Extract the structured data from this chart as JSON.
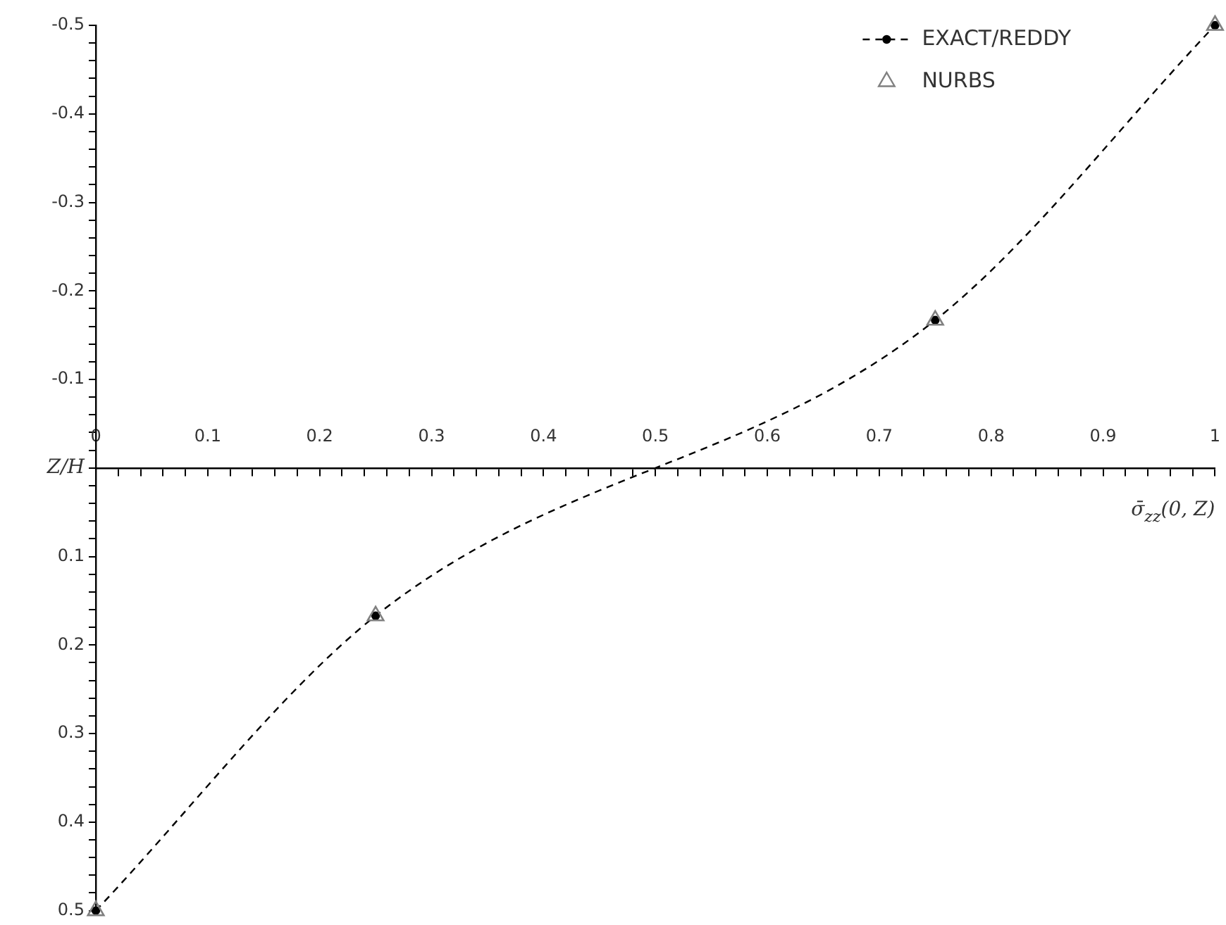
{
  "chart_data": {
    "type": "line",
    "xlabel": "σ̄$_{zz}$(0, Z)",
    "ylabel": "Z/H",
    "xlim": [
      0,
      1
    ],
    "ylim": [
      0.5,
      -0.5
    ],
    "xticks": [
      0,
      {
        "value": 0.02,
        "label": null
      },
      {
        "value": 0.04,
        "label": null
      },
      {
        "value": 0.06,
        "label": null
      },
      {
        "value": 0.08,
        "label": null
      },
      0.1,
      {
        "value": 0.12,
        "label": null
      },
      {
        "value": 0.14,
        "label": null
      },
      {
        "value": 0.16,
        "label": null
      },
      {
        "value": 0.18,
        "label": null
      },
      0.2,
      {
        "value": 0.22,
        "label": null
      },
      {
        "value": 0.24,
        "label": null
      },
      {
        "value": 0.26,
        "label": null
      },
      {
        "value": 0.28,
        "label": null
      },
      0.3,
      {
        "value": 0.32,
        "label": null
      },
      {
        "value": 0.34,
        "label": null
      },
      {
        "value": 0.36,
        "label": null
      },
      {
        "value": 0.38,
        "label": null
      },
      0.4,
      {
        "value": 0.42,
        "label": null
      },
      {
        "value": 0.44,
        "label": null
      },
      {
        "value": 0.46,
        "label": null
      },
      {
        "value": 0.48,
        "label": null
      },
      0.5,
      {
        "value": 0.52,
        "label": null
      },
      {
        "value": 0.54,
        "label": null
      },
      {
        "value": 0.56,
        "label": null
      },
      {
        "value": 0.58,
        "label": null
      },
      0.6,
      {
        "value": 0.62,
        "label": null
      },
      {
        "value": 0.64,
        "label": null
      },
      {
        "value": 0.66,
        "label": null
      },
      {
        "value": 0.68,
        "label": null
      },
      0.7,
      {
        "value": 0.72,
        "label": null
      },
      {
        "value": 0.74,
        "label": null
      },
      {
        "value": 0.76,
        "label": null
      },
      {
        "value": 0.78,
        "label": null
      },
      0.8,
      {
        "value": 0.82,
        "label": null
      },
      {
        "value": 0.84,
        "label": null
      },
      {
        "value": 0.86,
        "label": null
      },
      {
        "value": 0.88,
        "label": null
      },
      0.9,
      {
        "value": 0.92,
        "label": null
      },
      {
        "value": 0.94,
        "label": null
      },
      {
        "value": 0.96,
        "label": null
      },
      {
        "value": 0.98,
        "label": null
      },
      1
    ],
    "yticks": [
      -0.5,
      {
        "value": -0.48,
        "label": null
      },
      {
        "value": -0.46,
        "label": null
      },
      {
        "value": -0.44,
        "label": null
      },
      {
        "value": -0.42,
        "label": null
      },
      -0.4,
      {
        "value": -0.38,
        "label": null
      },
      {
        "value": -0.36,
        "label": null
      },
      {
        "value": -0.34,
        "label": null
      },
      {
        "value": -0.32,
        "label": null
      },
      -0.3,
      {
        "value": -0.28,
        "label": null
      },
      {
        "value": -0.26,
        "label": null
      },
      {
        "value": -0.24,
        "label": null
      },
      {
        "value": -0.22,
        "label": null
      },
      -0.2,
      {
        "value": -0.18,
        "label": null
      },
      {
        "value": -0.16,
        "label": null
      },
      {
        "value": -0.14,
        "label": null
      },
      {
        "value": -0.12,
        "label": null
      },
      -0.1,
      {
        "value": -0.08,
        "label": null
      },
      {
        "value": -0.06,
        "label": null
      },
      {
        "value": -0.04,
        "label": null
      },
      {
        "value": -0.02,
        "label": null
      },
      {
        "value": 0,
        "label": null
      },
      {
        "value": 0.02,
        "label": null
      },
      {
        "value": 0.04,
        "label": null
      },
      {
        "value": 0.06,
        "label": null
      },
      {
        "value": 0.08,
        "label": null
      },
      0.1,
      {
        "value": 0.12,
        "label": null
      },
      {
        "value": 0.14,
        "label": null
      },
      {
        "value": 0.16,
        "label": null
      },
      {
        "value": 0.18,
        "label": null
      },
      0.2,
      {
        "value": 0.22,
        "label": null
      },
      {
        "value": 0.24,
        "label": null
      },
      {
        "value": 0.26,
        "label": null
      },
      {
        "value": 0.28,
        "label": null
      },
      0.3,
      {
        "value": 0.32,
        "label": null
      },
      {
        "value": 0.34,
        "label": null
      },
      {
        "value": 0.36,
        "label": null
      },
      {
        "value": 0.38,
        "label": null
      },
      0.4,
      {
        "value": 0.42,
        "label": null
      },
      {
        "value": 0.44,
        "label": null
      },
      {
        "value": 0.46,
        "label": null
      },
      {
        "value": 0.48,
        "label": null
      },
      0.5
    ],
    "grid": false,
    "legend": "top right",
    "series": [
      {
        "name": "EXACT/REDDY",
        "color": "#000000",
        "marker": "circle",
        "line_style": "dashed",
        "x": [
          0,
          0.25,
          0.75,
          1
        ],
        "values": [
          0.5,
          0.167,
          -0.167,
          -0.5
        ]
      },
      {
        "name": "NURBS",
        "type": "scatter",
        "color": "#808080",
        "marker": "triangle",
        "x": [
          0,
          0.25,
          0.75,
          1
        ],
        "values": [
          0.5,
          0.167,
          -0.167,
          -0.5
        ]
      }
    ]
  }
}
